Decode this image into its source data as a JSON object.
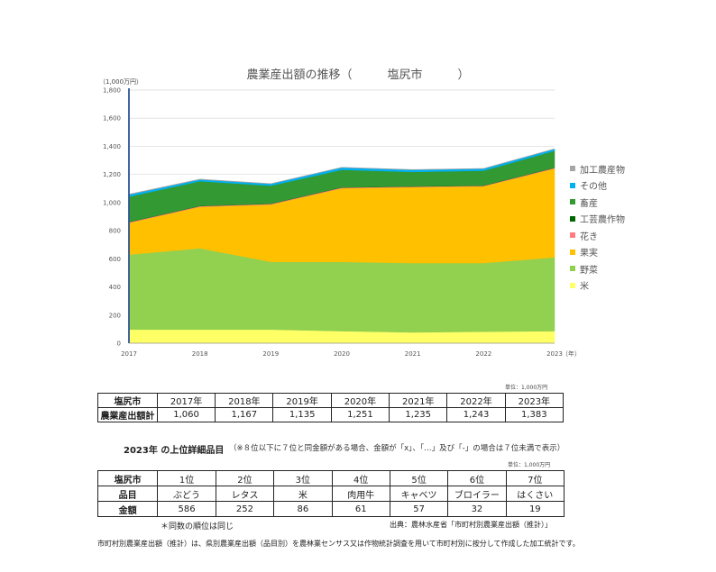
{
  "chart_data": {
    "type": "area",
    "stacked": true,
    "title": "農業産出額の推移（　　　塩尻市　　　）",
    "ylabel": "（1,000万円）",
    "x_unit_label": "（年）",
    "x": [
      "2017",
      "2018",
      "2019",
      "2020",
      "2021",
      "2022",
      "2023"
    ],
    "ylim": [
      0,
      1800
    ],
    "yticks": [
      0,
      200,
      400,
      600,
      800,
      1000,
      1200,
      1400,
      1600,
      1800
    ],
    "ytick_labels": [
      "0",
      "200",
      "400",
      "600",
      "800",
      "1,000",
      "1,200",
      "1,400",
      "1,600",
      "1,800"
    ],
    "grid": true,
    "legend_position": "right",
    "series": [
      {
        "name": "米",
        "color": "#ffff66",
        "values": [
          97,
          97,
          97,
          86,
          77,
          82,
          86
        ]
      },
      {
        "name": "野菜",
        "color": "#92d050",
        "values": [
          533,
          578,
          482,
          492,
          493,
          488,
          524
        ]
      },
      {
        "name": "果実",
        "color": "#ffc000",
        "values": [
          226,
          295,
          407,
          524,
          540,
          546,
          632
        ]
      },
      {
        "name": "花き",
        "color": "#ff7c80",
        "values": [
          5,
          5,
          5,
          5,
          4,
          4,
          5
        ]
      },
      {
        "name": "工芸農作物",
        "color": "#006600",
        "values": [
          2,
          2,
          2,
          2,
          2,
          2,
          2
        ]
      },
      {
        "name": "畜産",
        "color": "#339933",
        "values": [
          179,
          175,
          127,
          124,
          102,
          105,
          119
        ]
      },
      {
        "name": "その他",
        "color": "#00b0f0",
        "values": [
          15,
          12,
          13,
          16,
          15,
          14,
          13
        ]
      },
      {
        "name": "加工農産物",
        "color": "#a6a6a6",
        "values": [
          3,
          3,
          2,
          2,
          2,
          2,
          2
        ]
      }
    ]
  },
  "summary": {
    "unit": "単位：1,000万円",
    "header": "塩尻市",
    "row_label": "農業産出額計",
    "years": [
      "2017年",
      "2018年",
      "2019年",
      "2020年",
      "2021年",
      "2022年",
      "2023年"
    ],
    "values": [
      "1,060",
      "1,167",
      "1,135",
      "1,251",
      "1,235",
      "1,243",
      "1,383"
    ]
  },
  "top_items": {
    "heading": "2023年 の上位詳細品目",
    "note": "（※８位以下に７位と同金額がある場合、金額が「x」、「…」及び「-」の場合は７位未満で表示）",
    "unit": "単位：1,000万円",
    "header": "塩尻市",
    "ranks": [
      "1位",
      "2位",
      "3位",
      "4位",
      "5位",
      "6位",
      "7位"
    ],
    "item_label": "品目",
    "items": [
      "ぶどう",
      "レタス",
      "米",
      "肉用牛",
      "キャベツ",
      "ブロイラー",
      "はくさい"
    ],
    "amount_label": "金額",
    "amounts": [
      "586",
      "252",
      "86",
      "61",
      "57",
      "32",
      "19"
    ],
    "same_rank_note": "＊同数の順位は同じ",
    "source": "出典：農林水産省「市町村別農業産出額（推計）」"
  },
  "footnote": "市町村別農業産出額（推計）は、県別農業産出額（品目別）を農林業センサス又は作物統計調査を用いて市町村別に按分して作成した加工統計です。"
}
